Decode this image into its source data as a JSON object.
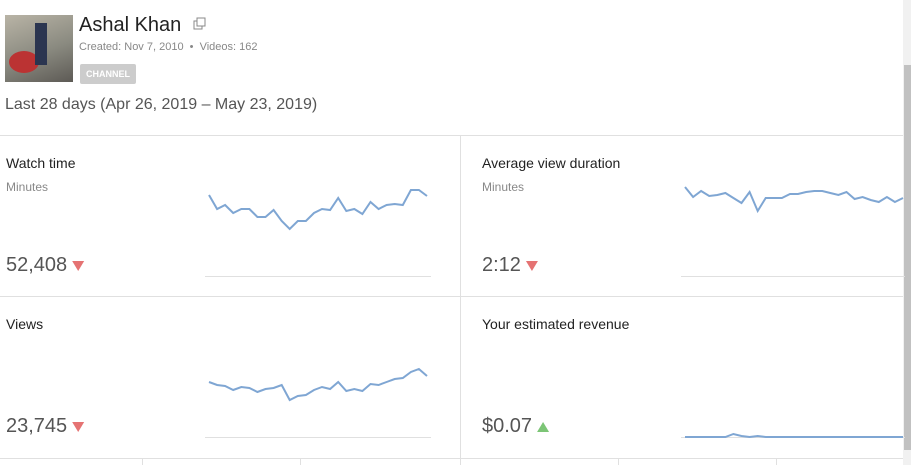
{
  "header": {
    "name": "Ashal Khan",
    "created": "Created: Nov 7, 2010",
    "videos": "Videos: 162",
    "badge": "CHANNEL",
    "period": "Last 28 days (Apr 26, 2019 – May 23, 2019)"
  },
  "cards": [
    {
      "title": "Watch time",
      "unit": "Minutes",
      "value": "52,408",
      "trend": "down",
      "trend_color": "#e57373",
      "sparkline": [
        100,
        86,
        90,
        82,
        86,
        86,
        78,
        78,
        85,
        74,
        66,
        74,
        74,
        82,
        86,
        85,
        97,
        84,
        86,
        81,
        93,
        86,
        90,
        91,
        90,
        105,
        105,
        99
      ]
    },
    {
      "title": "Average view duration",
      "unit": "Minutes",
      "value": "2:12",
      "trend": "down",
      "trend_color": "#e57373",
      "sparkline": [
        108,
        98,
        104,
        99,
        100,
        102,
        97,
        92,
        103,
        84,
        97,
        97,
        97,
        101,
        101,
        103,
        104,
        104,
        102,
        100,
        103,
        96,
        98,
        95,
        93,
        98,
        93,
        97
      ]
    },
    {
      "title": "Views",
      "value": "23,745",
      "trend": "down",
      "trend_color": "#e57373",
      "sparkline": [
        74,
        71,
        70,
        66,
        69,
        68,
        64,
        67,
        68,
        71,
        56,
        60,
        61,
        66,
        69,
        67,
        74,
        65,
        67,
        65,
        72,
        71,
        74,
        77,
        78,
        84,
        87,
        80
      ]
    },
    {
      "title": "Your estimated revenue",
      "value": "$0.07",
      "trend": "up",
      "trend_color": "#7cc576",
      "sparkline": [
        19,
        19,
        19,
        19,
        19,
        19,
        22,
        20,
        19,
        20,
        19,
        19,
        19,
        19,
        19,
        19,
        19,
        19,
        19,
        19,
        19,
        19,
        19,
        19,
        19,
        19,
        19,
        19
      ]
    }
  ],
  "line_color": "#7fa6d3"
}
